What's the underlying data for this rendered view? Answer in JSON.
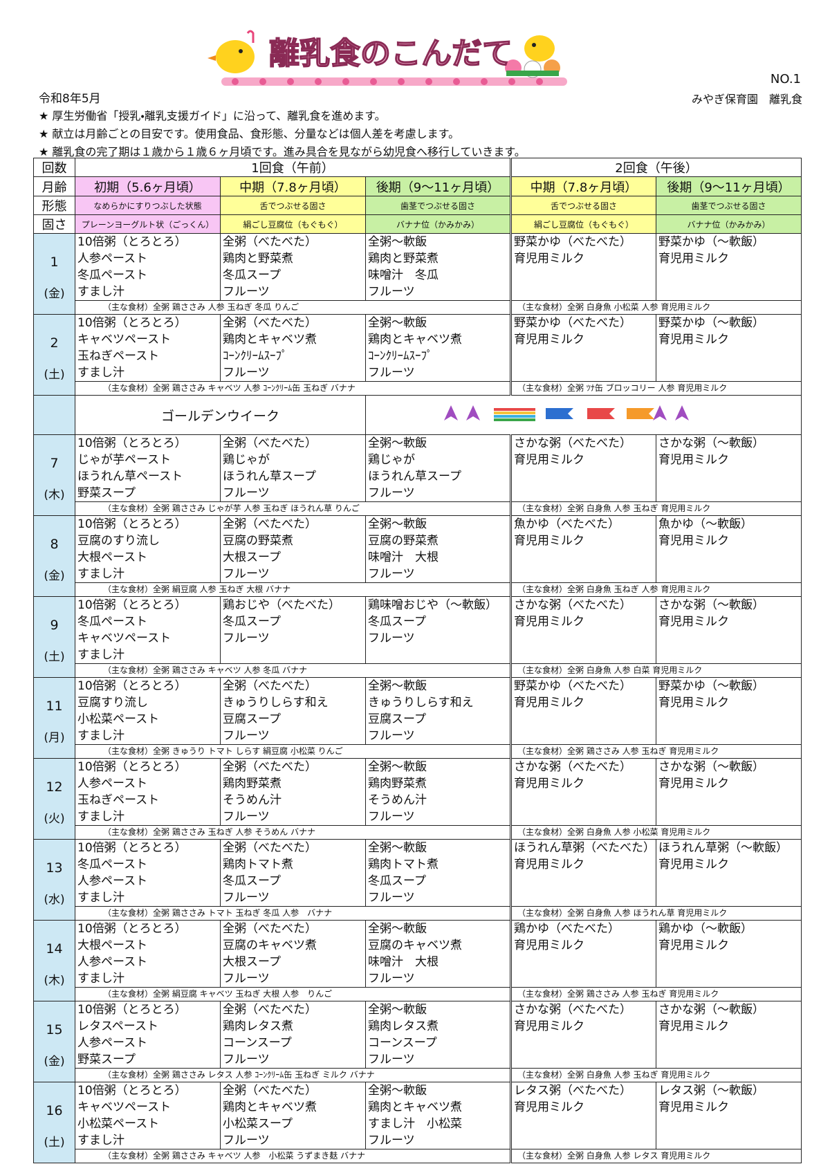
{
  "header": {
    "title": "離乳食のこんだて",
    "date": "令和8年5月",
    "number": "NO.1",
    "org": "みやぎ保育園　離乳食"
  },
  "notes": [
    "★ 厚生労働省「授乳・離乳支援ガイド」に沿って、離乳食を進めます。",
    "★ 献立は月齢ごとの目安です。使用食品、食形態、分量などは個人差を考慮します。",
    "★ 離乳食の完了期は１歳から１歳６ヶ月頃です。進み具合を見ながら幼児食へ移行していきます。"
  ],
  "table": {
    "labels": {
      "count": "回数",
      "age": "月齢",
      "form": "形態",
      "firmness": "固さ"
    },
    "meals": [
      "1回食（午前）",
      "2回食（午後）"
    ],
    "stages": [
      "初期（5.6ヶ月頃）",
      "中期（7.8ヶ月頃）",
      "後期（9〜11ヶ月頃）",
      "中期（7.8ヶ月頃）",
      "後期（9〜11ヶ月頃）"
    ],
    "forms": [
      "なめらかにすりつぶした状態",
      "舌でつぶせる固さ",
      "歯茎でつぶせる固さ",
      "舌でつぶせる固さ",
      "歯茎でつぶせる固さ"
    ],
    "firmness": [
      "プレーンヨーグルト状（ごっくん）",
      "絹ごし豆腐位（もぐもぐ）",
      "バナナ位（かみかみ）",
      "絹ごし豆腐位（もぐもぐ）",
      "バナナ位（かみかみ）"
    ],
    "holiday": "ゴールデンウイーク",
    "days": [
      {
        "day": "1",
        "weekday": "(金)",
        "cols": [
          [
            "10倍粥（とろとろ）",
            "人参ペースト",
            "冬瓜ペースト",
            "すまし汁"
          ],
          [
            "全粥（べたべた）",
            "鶏肉と野菜煮",
            "冬瓜スープ",
            "フルーツ"
          ],
          [
            "全粥〜軟飯",
            "鶏肉と野菜煮",
            "味噌汁　冬瓜",
            "フルーツ"
          ],
          [
            "野菜かゆ（べたべた）",
            "育児用ミルク"
          ],
          [
            "野菜かゆ（〜軟飯）",
            "育児用ミルク"
          ]
        ],
        "ingredients": [
          "（主な食材）全粥 鶏ささみ 人参 玉ねぎ 冬瓜 りんご",
          "（主な食材）全粥 白身魚 小松菜 人参 育児用ミルク"
        ]
      },
      {
        "day": "2",
        "weekday": "(土)",
        "cols": [
          [
            "10倍粥（とろとろ）",
            "キャベツペースト",
            "玉ねぎペースト",
            "すまし汁"
          ],
          [
            "全粥（べたべた）",
            "鶏肉とキャベツ煮",
            "ｺｰﾝｸﾘｰﾑｽｰﾌﾟ",
            "フルーツ"
          ],
          [
            "全粥〜軟飯",
            "鶏肉とキャベツ煮",
            "ｺｰﾝｸﾘｰﾑｽｰﾌﾟ",
            "フルーツ"
          ],
          [
            "野菜かゆ（べたべた）",
            "育児用ミルク"
          ],
          [
            "野菜かゆ（〜軟飯）",
            "育児用ミルク"
          ]
        ],
        "ingredients": [
          "（主な食材）全粥 鶏ささみ キャベツ 人参 ｺｰﾝｸﾘｰﾑ缶 玉ねぎ バナナ",
          "（主な食材）全粥 ﾂﾅ缶 ブロッコリー 人参 育児用ミルク"
        ]
      },
      {
        "day": "7",
        "weekday": "(木)",
        "cols": [
          [
            "10倍粥（とろとろ）",
            "じゃが芋ペースト",
            "ほうれん草ペースト",
            "野菜スープ"
          ],
          [
            "全粥（べたべた）",
            "鶏じゃが",
            "ほうれん草スープ",
            "フルーツ"
          ],
          [
            "全粥〜軟飯",
            "鶏じゃが",
            "ほうれん草スープ",
            "フルーツ"
          ],
          [
            "さかな粥（べたべた）",
            "育児用ミルク"
          ],
          [
            "さかな粥（〜軟飯）",
            "育児用ミルク"
          ]
        ],
        "ingredients": [
          "（主な食材）全粥 鶏ささみ じゃが芋 人参 玉ねぎ ほうれん草 りんご",
          "（主な食材）全粥 白身魚 人参 玉ねぎ 育児用ミルク"
        ]
      },
      {
        "day": "8",
        "weekday": "(金)",
        "cols": [
          [
            "10倍粥（とろとろ）",
            "豆腐のすり流し",
            "大根ペースト",
            "すまし汁"
          ],
          [
            "全粥（べたべた）",
            "豆腐の野菜煮",
            "大根スープ",
            "フルーツ"
          ],
          [
            "全粥〜軟飯",
            "豆腐の野菜煮",
            "味噌汁　大根",
            "フルーツ"
          ],
          [
            "魚かゆ（べたべた）",
            "育児用ミルク"
          ],
          [
            "魚かゆ（〜軟飯）",
            "育児用ミルク"
          ]
        ],
        "ingredients": [
          "（主な食材）全粥 絹豆腐 人参 玉ねぎ 大根 バナナ",
          "（主な食材）全粥 白身魚 玉ねぎ 人参 育児用ミルク"
        ]
      },
      {
        "day": "9",
        "weekday": "(土)",
        "cols": [
          [
            "10倍粥（とろとろ）",
            "冬瓜ペースト",
            "キャベツペースト",
            "すまし汁"
          ],
          [
            "鶏おじや（べたべた）",
            "冬瓜スープ",
            "フルーツ"
          ],
          [
            "鶏味噌おじや（〜軟飯）",
            "冬瓜スープ",
            "フルーツ"
          ],
          [
            "さかな粥（べたべた）",
            "育児用ミルク"
          ],
          [
            "さかな粥（〜軟飯）",
            "育児用ミルク"
          ]
        ],
        "ingredients": [
          "（主な食材）全粥 鶏ささみ キャベツ 人参 冬瓜 バナナ",
          "（主な食材）全粥 白身魚 人参 白菜 育児用ミルク"
        ]
      },
      {
        "day": "11",
        "weekday": "(月)",
        "cols": [
          [
            "10倍粥（とろとろ）",
            "豆腐すり流し",
            "小松菜ペースト",
            "すまし汁"
          ],
          [
            "全粥（べたべた）",
            "きゅうりしらす和え",
            "豆腐スープ",
            "フルーツ"
          ],
          [
            "全粥〜軟飯",
            "きゅうりしらす和え",
            "豆腐スープ",
            "フルーツ"
          ],
          [
            "野菜かゆ（べたべた）",
            "育児用ミルク"
          ],
          [
            "野菜かゆ（〜軟飯）",
            "育児用ミルク"
          ]
        ],
        "ingredients": [
          "（主な食材）全粥 きゅうり トマト しらす 絹豆腐 小松菜 りんご",
          "（主な食材）全粥 鶏ささみ 人参 玉ねぎ 育児用ミルク"
        ]
      },
      {
        "day": "12",
        "weekday": "(火)",
        "cols": [
          [
            "10倍粥（とろとろ）",
            "人参ペースト",
            "玉ねぎペースト",
            "すまし汁"
          ],
          [
            "全粥（べたべた）",
            "鶏肉野菜煮",
            "そうめん汁",
            "フルーツ"
          ],
          [
            "全粥〜軟飯",
            "鶏肉野菜煮",
            "そうめん汁",
            "フルーツ"
          ],
          [
            "さかな粥（べたべた）",
            "育児用ミルク"
          ],
          [
            "さかな粥（〜軟飯）",
            "育児用ミルク"
          ]
        ],
        "ingredients": [
          "（主な食材）全粥 鶏ささみ 玉ねぎ 人参 そうめん バナナ",
          "（主な食材）全粥 白身魚 人参 小松菜 育児用ミルク"
        ]
      },
      {
        "day": "13",
        "weekday": "(水)",
        "cols": [
          [
            "10倍粥（とろとろ）",
            "冬瓜ペースト",
            "人参ペースト",
            "すまし汁"
          ],
          [
            "全粥（べたべた）",
            "鶏肉トマト煮",
            "冬瓜スープ",
            "フルーツ"
          ],
          [
            "全粥〜軟飯",
            "鶏肉トマト煮",
            "冬瓜スープ",
            "フルーツ"
          ],
          [
            "ほうれん草粥（べたべた）",
            "育児用ミルク"
          ],
          [
            "ほうれん草粥（〜軟飯）",
            "育児用ミルク"
          ]
        ],
        "ingredients": [
          "（主な食材）全粥 鶏ささみ トマト 玉ねぎ 冬瓜 人参　バナナ",
          "（主な食材）全粥 白身魚 人参 ほうれん草 育児用ミルク"
        ]
      },
      {
        "day": "14",
        "weekday": "(木)",
        "cols": [
          [
            "10倍粥（とろとろ）",
            "大根ペースト",
            "人参ペースト",
            "すまし汁"
          ],
          [
            "全粥（べたべた）",
            "豆腐のキャベツ煮",
            "大根スープ",
            "フルーツ"
          ],
          [
            "全粥〜軟飯",
            "豆腐のキャベツ煮",
            "味噌汁　大根",
            "フルーツ"
          ],
          [
            "鶏かゆ（べたべた）",
            "育児用ミルク"
          ],
          [
            "鶏かゆ（〜軟飯）",
            "育児用ミルク"
          ]
        ],
        "ingredients": [
          "（主な食材）全粥 絹豆腐 キャベツ 玉ねぎ 大根 人参　りんご",
          "（主な食材）全粥 鶏ささみ 人参 玉ねぎ 育児用ミルク"
        ]
      },
      {
        "day": "15",
        "weekday": "(金)",
        "cols": [
          [
            "10倍粥（とろとろ）",
            "レタスペースト",
            "人参ペースト",
            "野菜スープ"
          ],
          [
            "全粥（べたべた）",
            "鶏肉レタス煮",
            "コーンスープ",
            "フルーツ"
          ],
          [
            "全粥〜軟飯",
            "鶏肉レタス煮",
            "コーンスープ",
            "フルーツ"
          ],
          [
            "さかな粥（べたべた）",
            "育児用ミルク"
          ],
          [
            "さかな粥（〜軟飯）",
            "育児用ミルク"
          ]
        ],
        "ingredients": [
          "（主な食材）全粥 鶏ささみ レタス 人参 ｺｰﾝｸﾘｰﾑ缶 玉ねぎ ミルク バナナ",
          "（主な食材）全粥 白身魚 人参 玉ねぎ 育児用ミルク"
        ]
      },
      {
        "day": "16",
        "weekday": "(土)",
        "cols": [
          [
            "10倍粥（とろとろ）",
            "キャベツペースト",
            "小松菜ペースト",
            "すまし汁"
          ],
          [
            "全粥（べたべた）",
            "鶏肉とキャベツ煮",
            "小松菜スープ",
            "フルーツ"
          ],
          [
            "全粥〜軟飯",
            "鶏肉とキャベツ煮",
            "すまし汁　小松菜",
            "フルーツ"
          ],
          [
            "レタス粥（べたべた）",
            "育児用ミルク"
          ],
          [
            "レタス粥（〜軟飯）",
            "育児用ミルク"
          ]
        ],
        "ingredients": [
          "（主な食材）全粥 鶏ささみ キャベツ 人参　小松菜 うずまき麸 バナナ",
          "（主な食材）全粥 白身魚 人参 レタス 育児用ミルク"
        ]
      }
    ]
  }
}
